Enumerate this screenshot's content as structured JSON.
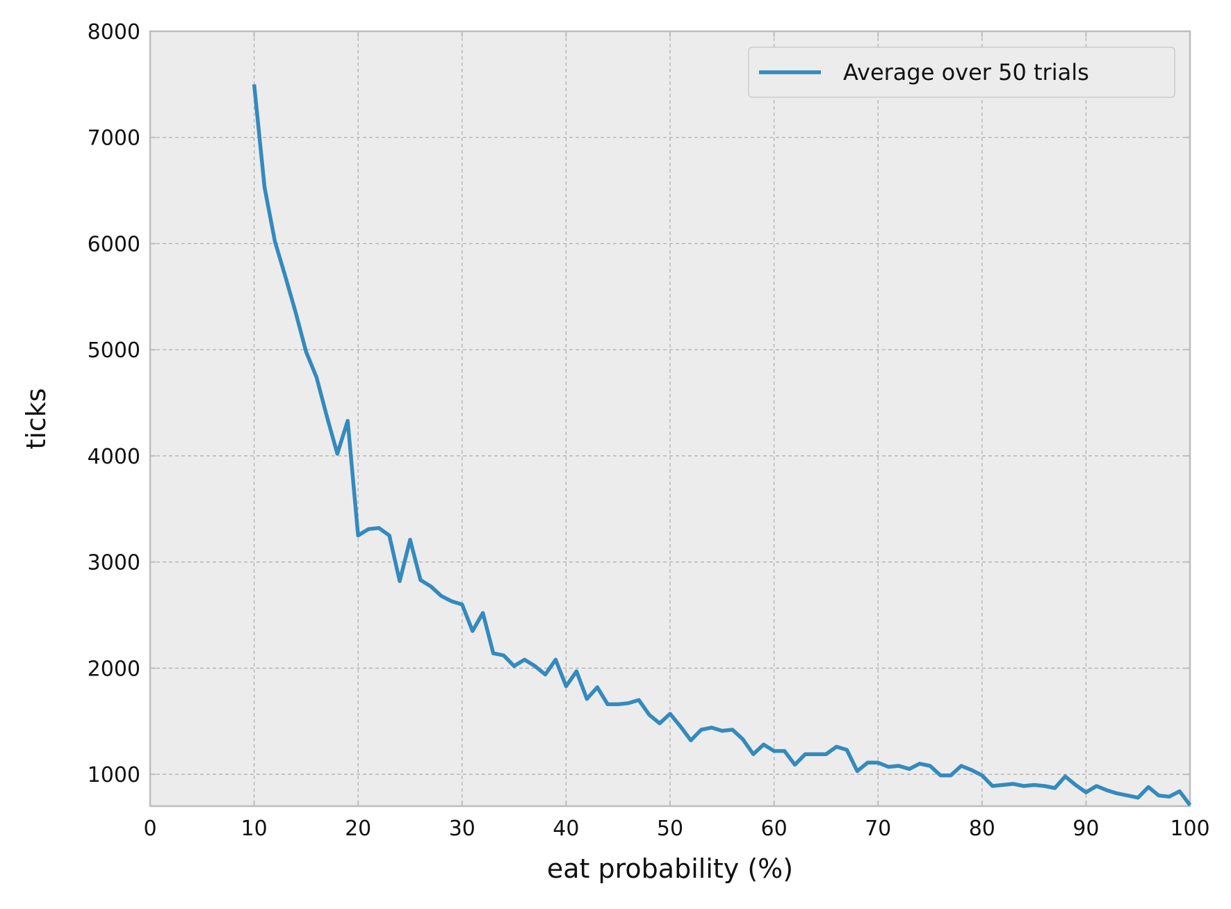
{
  "chart_data": {
    "type": "line",
    "title": "",
    "xlabel": "eat probability (%)",
    "ylabel": "ticks",
    "xlim": [
      0,
      100
    ],
    "ylim": [
      700,
      8000
    ],
    "xticks": [
      0,
      10,
      20,
      30,
      40,
      50,
      60,
      70,
      80,
      90,
      100
    ],
    "xtick_labels": [
      "0",
      "10",
      "20",
      "30",
      "40",
      "50",
      "60",
      "70",
      "80",
      "90",
      "100"
    ],
    "yticks": [
      1000,
      2000,
      3000,
      4000,
      5000,
      6000,
      7000,
      8000
    ],
    "ytick_labels": [
      "1000",
      "2000",
      "3000",
      "4000",
      "5000",
      "6000",
      "7000",
      "8000"
    ],
    "grid": true,
    "legend_position": "top-right",
    "colors": {
      "background": "#ececec",
      "grid": "#b0b0b0",
      "axes": "#bcbcbc",
      "series": "#348abd"
    },
    "series": [
      {
        "name": "Average over 50 trials",
        "x": [
          10,
          11,
          12,
          13,
          14,
          15,
          16,
          17,
          18,
          19,
          20,
          21,
          22,
          23,
          24,
          25,
          26,
          27,
          28,
          29,
          30,
          31,
          32,
          33,
          34,
          35,
          36,
          37,
          38,
          39,
          40,
          41,
          42,
          43,
          44,
          45,
          46,
          47,
          48,
          49,
          50,
          51,
          52,
          53,
          54,
          55,
          56,
          57,
          58,
          59,
          60,
          61,
          62,
          63,
          64,
          65,
          66,
          67,
          68,
          69,
          70,
          71,
          72,
          73,
          74,
          75,
          76,
          77,
          78,
          79,
          80,
          81,
          82,
          83,
          84,
          85,
          86,
          87,
          88,
          89,
          90,
          91,
          92,
          93,
          94,
          95,
          96,
          97,
          98,
          99,
          100
        ],
        "y": [
          7500,
          6530,
          6020,
          5690,
          5350,
          4980,
          4740,
          4370,
          4020,
          4330,
          3250,
          3310,
          3320,
          3250,
          2820,
          3210,
          2830,
          2770,
          2680,
          2630,
          2600,
          2350,
          2520,
          2140,
          2120,
          2020,
          2080,
          2020,
          1940,
          2080,
          1830,
          1970,
          1710,
          1820,
          1660,
          1660,
          1670,
          1700,
          1560,
          1480,
          1570,
          1450,
          1320,
          1420,
          1440,
          1410,
          1420,
          1330,
          1190,
          1280,
          1220,
          1220,
          1090,
          1190,
          1190,
          1190,
          1260,
          1230,
          1030,
          1110,
          1110,
          1070,
          1080,
          1050,
          1100,
          1080,
          990,
          990,
          1080,
          1040,
          990,
          890,
          900,
          910,
          890,
          900,
          890,
          870,
          980,
          900,
          830,
          890,
          850,
          820,
          800,
          780,
          880,
          800,
          790,
          840,
          710
        ]
      }
    ]
  }
}
